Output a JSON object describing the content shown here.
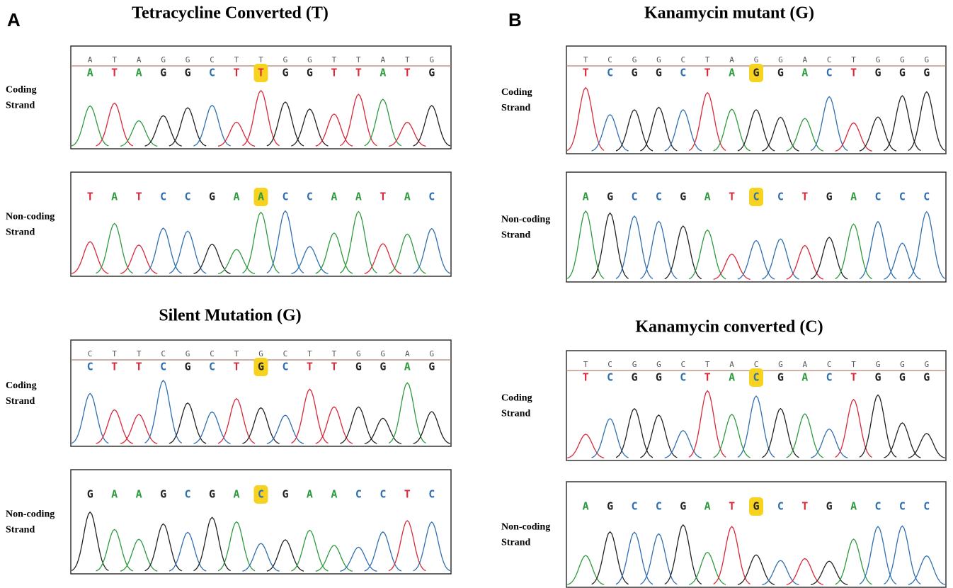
{
  "panels": [
    {
      "label": "A",
      "figures": [
        {
          "title": "Tetracycline Converted (T)",
          "traces": [
            {
              "strand": [
                "Coding",
                "Strand"
              ],
              "reference": [
                "A",
                "T",
                "A",
                "G",
                "G",
                "C",
                "T",
                "T",
                "G",
                "G",
                "T",
                "T",
                "A",
                "T",
                "G"
              ],
              "bases": [
                "A",
                "T",
                "A",
                "G",
                "G",
                "C",
                "T",
                "T",
                "G",
                "G",
                "T",
                "T",
                "A",
                "T",
                "G"
              ],
              "highlight": 7
            },
            {
              "strand": [
                "Non-coding",
                "Strand"
              ],
              "bases": [
                "T",
                "A",
                "T",
                "C",
                "C",
                "G",
                "A",
                "A",
                "C",
                "C",
                "A",
                "A",
                "T",
                "A",
                "C"
              ],
              "highlight": 7
            }
          ]
        },
        {
          "title": "Silent Mutation (G)",
          "traces": [
            {
              "strand": [
                "Coding",
                "Strand"
              ],
              "reference": [
                "C",
                "T",
                "T",
                "C",
                "G",
                "C",
                "T",
                "G",
                "C",
                "T",
                "T",
                "G",
                "G",
                "A",
                "G"
              ],
              "bases": [
                "C",
                "T",
                "T",
                "C",
                "G",
                "C",
                "T",
                "G",
                "C",
                "T",
                "T",
                "G",
                "G",
                "A",
                "G"
              ],
              "highlight": 7
            },
            {
              "strand": [
                "Non-coding",
                "Strand"
              ],
              "bases": [
                "G",
                "A",
                "A",
                "G",
                "C",
                "G",
                "A",
                "C",
                "G",
                "A",
                "A",
                "C",
                "C",
                "T",
                "C"
              ],
              "highlight": 7
            }
          ]
        }
      ]
    },
    {
      "label": "B",
      "figures": [
        {
          "title": "Kanamycin mutant (G)",
          "traces": [
            {
              "strand": [
                "Coding",
                "Strand"
              ],
              "reference": [
                "T",
                "C",
                "G",
                "G",
                "C",
                "T",
                "A",
                "G",
                "G",
                "A",
                "C",
                "T",
                "G",
                "G",
                "G"
              ],
              "bases": [
                "T",
                "C",
                "G",
                "G",
                "C",
                "T",
                "A",
                "G",
                "G",
                "A",
                "C",
                "T",
                "G",
                "G",
                "G"
              ],
              "highlight": 7
            },
            {
              "strand": [
                "Non-coding",
                "Strand"
              ],
              "bases": [
                "A",
                "G",
                "C",
                "C",
                "G",
                "A",
                "T",
                "C",
                "C",
                "T",
                "G",
                "A",
                "C",
                "C",
                "C"
              ],
              "highlight": 7
            }
          ]
        },
        {
          "title": "Kanamycin converted (C)",
          "traces": [
            {
              "strand": [
                "Coding",
                "Strand"
              ],
              "reference": [
                "T",
                "C",
                "G",
                "G",
                "C",
                "T",
                "A",
                "C",
                "G",
                "A",
                "C",
                "T",
                "G",
                "G",
                "G"
              ],
              "bases": [
                "T",
                "C",
                "G",
                "G",
                "C",
                "T",
                "A",
                "C",
                "G",
                "A",
                "C",
                "T",
                "G",
                "G",
                "G"
              ],
              "highlight": 7
            },
            {
              "strand": [
                "Non-coding",
                "Strand"
              ],
              "bases": [
                "A",
                "G",
                "C",
                "C",
                "G",
                "A",
                "T",
                "G",
                "C",
                "T",
                "G",
                "A",
                "C",
                "C",
                "C"
              ],
              "highlight": 7
            }
          ]
        }
      ]
    }
  ],
  "base_colors": {
    "A": "#2e9a3e",
    "C": "#2f6fb0",
    "G": "#222222",
    "T": "#d8283a"
  }
}
